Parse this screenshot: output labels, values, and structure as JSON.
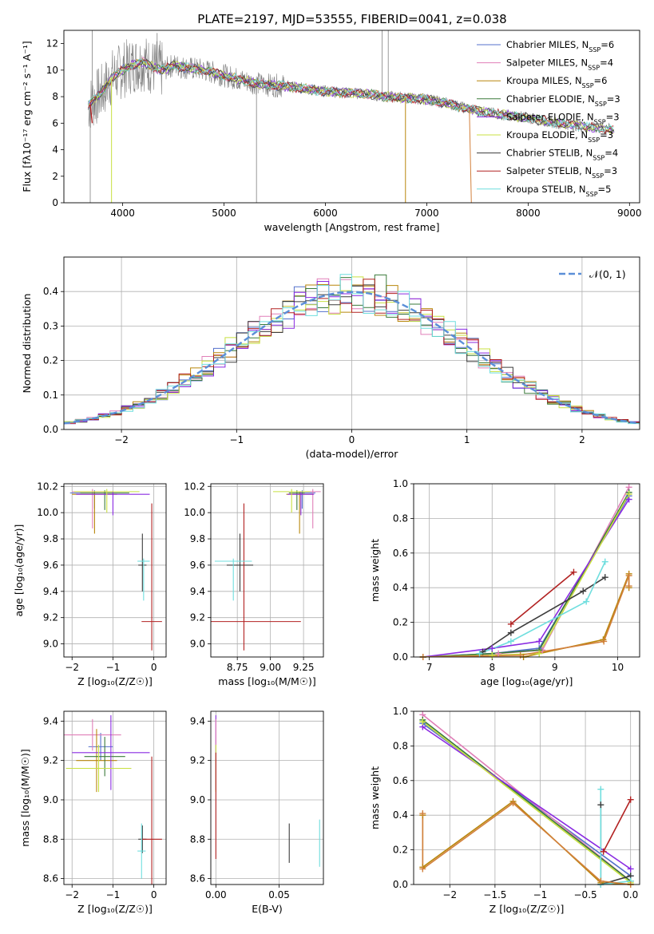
{
  "figure_title": "PLATE=2197, MJD=53555, FIBERID=0041, z=0.038",
  "colors": {
    "Chabrier MILES": "#5470cc",
    "Salpeter MILES": "#e07fb8",
    "Kroupa MILES": "#b8860b",
    "Chabrier ELODIE": "#3a7a3a",
    "Salpeter ELODIE": "#8a2be2",
    "Kroupa ELODIE": "#c8e040",
    "Chabrier STELIB": "#3c3c3c",
    "Salpeter STELIB": "#b22222",
    "Kroupa STELIB": "#6fdede",
    "data": "#808080",
    "normal": "#5b8fd8",
    "orange": "#d2803c",
    "teal": "#2e8b8b"
  },
  "chart_data": [
    {
      "id": "spectrum",
      "type": "line",
      "title": "PLATE=2197, MJD=53555, FIBERID=0041, z=0.038",
      "xlabel": "wavelength [Angstrom, rest frame]",
      "ylabel": "Flux [fλ10⁻¹⁷ erg cm⁻² s⁻¹ A⁻¹]",
      "xlim": [
        3420,
        9100
      ],
      "ylim": [
        0,
        13
      ],
      "xticks": [
        4000,
        5000,
        6000,
        7000,
        8000,
        9000
      ],
      "yticks": [
        0,
        2,
        4,
        6,
        8,
        10,
        12
      ],
      "legend_position": "top-right",
      "legend": [
        {
          "label": "Chabrier MILES, N",
          "sub": "SSP",
          "suffix": "=6",
          "key": "Chabrier MILES"
        },
        {
          "label": "Salpeter MILES, N",
          "sub": "SSP",
          "suffix": "=4",
          "key": "Salpeter MILES"
        },
        {
          "label": "Kroupa MILES, N",
          "sub": "SSP",
          "suffix": "=6",
          "key": "Kroupa MILES"
        },
        {
          "label": "Chabrier ELODIE, N",
          "sub": "SSP",
          "suffix": "=3",
          "key": "Chabrier ELODIE"
        },
        {
          "label": "Salpeter ELODIE, N",
          "sub": "SSP",
          "suffix": "=3",
          "key": "Salpeter ELODIE"
        },
        {
          "label": "Kroupa ELODIE, N",
          "sub": "SSP",
          "suffix": "=3",
          "key": "Kroupa ELODIE"
        },
        {
          "label": "Chabrier STELIB, N",
          "sub": "SSP",
          "suffix": "=4",
          "key": "Chabrier STELIB"
        },
        {
          "label": "Salpeter STELIB, N",
          "sub": "SSP",
          "suffix": "=3",
          "key": "Salpeter STELIB"
        },
        {
          "label": "Kroupa STELIB, N",
          "sub": "SSP",
          "suffix": "=5",
          "key": "Kroupa STELIB"
        }
      ],
      "model_continuum": {
        "x": [
          3660,
          3700,
          3800,
          3900,
          4000,
          4100,
          4200,
          4300,
          4400,
          4500,
          4600,
          4800,
          5000,
          5200,
          5400,
          5600,
          5800,
          6000,
          6200,
          6400,
          6600,
          6800,
          7000,
          7200,
          7400,
          7600,
          7800,
          8000,
          8200,
          8400,
          8600,
          8850
        ],
        "y": [
          7.4,
          7.6,
          8.4,
          9.5,
          10.0,
          10.4,
          10.6,
          10.2,
          10.0,
          10.4,
          10.2,
          10.0,
          9.6,
          9.2,
          8.9,
          8.8,
          8.6,
          8.4,
          8.3,
          8.2,
          8.0,
          7.9,
          7.8,
          7.5,
          7.1,
          6.8,
          6.6,
          6.4,
          6.1,
          5.9,
          5.7,
          5.5
        ]
      }
    },
    {
      "id": "residual_hist",
      "type": "bar",
      "xlabel": "(data-model)/error",
      "ylabel": "Normed distribution",
      "xlim": [
        -2.5,
        2.5
      ],
      "ylim": [
        0,
        0.5
      ],
      "xticks": [
        -2,
        -1,
        0,
        1,
        2
      ],
      "yticks": [
        0.0,
        0.1,
        0.2,
        0.3,
        0.4
      ],
      "bin_width": 0.1,
      "legend": [
        {
          "label": "𝒩(0, 1)",
          "key": "normal"
        }
      ],
      "legend_position": "top-right",
      "curve": "standard normal pdf"
    },
    {
      "id": "age_vs_Z",
      "type": "scatter",
      "xlabel": "Z [log₁₀(Z/Z☉)]",
      "ylabel": "age  [log₁₀(age/yr)]",
      "xlim": [
        -2.2,
        0.3
      ],
      "ylim": [
        8.9,
        10.22
      ],
      "xticks": [
        -2,
        -1,
        0
      ],
      "yticks": [
        9.0,
        9.2,
        9.4,
        9.6,
        9.8,
        10.0,
        10.2
      ],
      "points": [
        {
          "key": "Chabrier MILES",
          "x": -1.45,
          "xerr": 0.6,
          "y": 10.15,
          "yerr_lo": 0.12,
          "yerr_hi": 0.02
        },
        {
          "key": "Salpeter MILES",
          "x": -1.5,
          "xerr": 0.5,
          "y": 10.16,
          "yerr_lo": 0.28,
          "yerr_hi": 0.02
        },
        {
          "key": "Kroupa MILES",
          "x": -1.45,
          "xerr": 0.55,
          "y": 10.14,
          "yerr_lo": 0.3,
          "yerr_hi": 0.02
        },
        {
          "key": "Chabrier ELODIE",
          "x": -1.2,
          "xerr": 0.6,
          "y": 10.15,
          "yerr_lo": 0.13,
          "yerr_hi": 0.02
        },
        {
          "key": "Salpeter ELODIE",
          "x": -1.0,
          "xerr": 0.9,
          "y": 10.14,
          "yerr_lo": 0.16,
          "yerr_hi": 0.02
        },
        {
          "key": "Kroupa ELODIE",
          "x": -1.15,
          "xerr": 0.8,
          "y": 10.16,
          "yerr_lo": 0.16,
          "yerr_hi": 0.02
        },
        {
          "key": "Chabrier STELIB",
          "x": -0.28,
          "xerr": 0.1,
          "y": 9.6,
          "yerr_lo": 0.2,
          "yerr_hi": 0.24
        },
        {
          "key": "Salpeter STELIB",
          "x": -0.05,
          "xerr": 0.25,
          "y": 9.17,
          "yerr_lo": 0.22,
          "yerr_hi": 0.9
        },
        {
          "key": "Kroupa STELIB",
          "x": -0.25,
          "xerr": 0.15,
          "y": 9.63,
          "yerr_lo": 0.3,
          "yerr_hi": 0.02
        }
      ]
    },
    {
      "id": "age_vs_mass",
      "type": "scatter",
      "xlabel": "mass [log₁₀(M/M☉)]",
      "ylabel": "",
      "xlim": [
        8.55,
        9.4
      ],
      "ylim": [
        8.9,
        10.22
      ],
      "xticks": [
        8.75,
        9.0,
        9.25
      ],
      "yticks": [
        9.0,
        9.2,
        9.4,
        9.6,
        9.8,
        10.0,
        10.2
      ],
      "points": [
        {
          "key": "Chabrier MILES",
          "x": 9.24,
          "xerr": 0.1,
          "y": 10.15,
          "yerr_lo": 0.12,
          "yerr_hi": 0.02
        },
        {
          "key": "Salpeter MILES",
          "x": 9.32,
          "xerr": 0.06,
          "y": 10.16,
          "yerr_lo": 0.28,
          "yerr_hi": 0.02
        },
        {
          "key": "Kroupa MILES",
          "x": 9.22,
          "xerr": 0.1,
          "y": 10.14,
          "yerr_lo": 0.3,
          "yerr_hi": 0.02
        },
        {
          "key": "Chabrier ELODIE",
          "x": 9.2,
          "xerr": 0.06,
          "y": 10.15,
          "yerr_lo": 0.13,
          "yerr_hi": 0.02
        },
        {
          "key": "Salpeter ELODIE",
          "x": 9.23,
          "xerr": 0.1,
          "y": 10.14,
          "yerr_lo": 0.16,
          "yerr_hi": 0.02
        },
        {
          "key": "Kroupa ELODIE",
          "x": 9.16,
          "xerr": 0.14,
          "y": 10.16,
          "yerr_lo": 0.16,
          "yerr_hi": 0.02
        },
        {
          "key": "Chabrier STELIB",
          "x": 8.77,
          "xerr": 0.1,
          "y": 9.6,
          "yerr_lo": 0.2,
          "yerr_hi": 0.24
        },
        {
          "key": "Salpeter STELIB",
          "x": 8.8,
          "xerr": 0.43,
          "y": 9.17,
          "yerr_lo": 0.22,
          "yerr_hi": 0.9
        },
        {
          "key": "Kroupa STELIB",
          "x": 8.72,
          "xerr": 0.14,
          "y": 9.63,
          "yerr_lo": 0.3,
          "yerr_hi": 0.02
        }
      ]
    },
    {
      "id": "weight_vs_age",
      "type": "line",
      "xlabel": "age  [log₁₀(age/yr)]",
      "ylabel": "mass weight",
      "xlim": [
        6.75,
        10.35
      ],
      "ylim": [
        0,
        1.0
      ],
      "xticks": [
        7,
        8,
        9,
        10
      ],
      "yticks": [
        0.0,
        0.2,
        0.4,
        0.6,
        0.8,
        1.0
      ],
      "series": [
        {
          "key": "Chabrier MILES",
          "x": [
            6.9,
            8.0,
            8.75,
            10.18
          ],
          "y": [
            0.0,
            0.02,
            0.05,
            0.93
          ]
        },
        {
          "key": "Salpeter MILES",
          "x": [
            6.9,
            8.1,
            8.8,
            10.18
          ],
          "y": [
            0.0,
            0.02,
            0.04,
            0.98
          ]
        },
        {
          "key": "Kroupa MILES",
          "x": [
            6.9,
            8.5,
            9.77,
            10.18,
            10.18
          ],
          "y": [
            0.0,
            0.0,
            0.1,
            0.48,
            0.4
          ]
        },
        {
          "key": "Chabrier ELODIE",
          "x": [
            6.9,
            8.0,
            8.75,
            10.18
          ],
          "y": [
            0.0,
            0.02,
            0.04,
            0.95
          ]
        },
        {
          "key": "Salpeter ELODIE",
          "x": [
            6.9,
            8.0,
            8.75,
            10.18
          ],
          "y": [
            0.0,
            0.05,
            0.09,
            0.91
          ]
        },
        {
          "key": "Kroupa ELODIE",
          "x": [
            6.9,
            8.0,
            8.75,
            10.18
          ],
          "y": [
            0.0,
            0.01,
            0.02,
            0.94
          ]
        },
        {
          "key": "Chabrier STELIB",
          "x": [
            7.85,
            8.3,
            9.45,
            9.8
          ],
          "y": [
            0.03,
            0.14,
            0.38,
            0.46
          ]
        },
        {
          "key": "Salpeter STELIB",
          "x": [
            8.3,
            9.3
          ],
          "y": [
            0.19,
            0.49
          ]
        },
        {
          "key": "Kroupa STELIB",
          "x": [
            7.8,
            8.3,
            9.5,
            9.8
          ],
          "y": [
            0.02,
            0.09,
            0.32,
            0.55
          ]
        },
        {
          "key": "orange",
          "x": [
            6.9,
            8.45,
            9.78,
            10.18,
            10.18
          ],
          "y": [
            0.0,
            0.01,
            0.09,
            0.47,
            0.41
          ]
        }
      ]
    },
    {
      "id": "mass_vs_Z",
      "type": "scatter",
      "xlabel": "Z [log₁₀(Z/Z☉)]",
      "ylabel": "mass [log₁₀(M/M☉)]",
      "xlim": [
        -2.2,
        0.3
      ],
      "ylim": [
        8.57,
        9.45
      ],
      "xticks": [
        -2,
        -1,
        0
      ],
      "yticks": [
        8.6,
        8.8,
        9.0,
        9.2,
        9.4
      ],
      "points": [
        {
          "key": "Chabrier MILES",
          "x": -1.3,
          "xerr": 0.3,
          "y": 9.27,
          "yerr": 0.07
        },
        {
          "key": "Salpeter MILES",
          "x": -1.5,
          "xerr": 0.7,
          "y": 9.33,
          "yerr": 0.08
        },
        {
          "key": "Kroupa MILES",
          "x": -1.4,
          "xerr": 0.5,
          "y": 9.2,
          "yerr": 0.16
        },
        {
          "key": "Chabrier ELODIE",
          "x": -1.2,
          "xerr": 0.5,
          "y": 9.22,
          "yerr": 0.1
        },
        {
          "key": "Salpeter ELODIE",
          "x": -1.05,
          "xerr": 0.95,
          "y": 9.24,
          "yerr": 0.19
        },
        {
          "key": "Kroupa ELODIE",
          "x": -1.35,
          "xerr": 0.8,
          "y": 9.16,
          "yerr": 0.12
        },
        {
          "key": "Chabrier STELIB",
          "x": -0.28,
          "xerr": 0.1,
          "y": 8.8,
          "yerr": 0.07
        },
        {
          "key": "Salpeter STELIB",
          "x": -0.05,
          "xerr": 0.25,
          "y": 8.8,
          "yerr": 0.42
        },
        {
          "key": "Kroupa STELIB",
          "x": -0.3,
          "xerr": 0.1,
          "y": 8.74,
          "yerr": 0.14
        }
      ]
    },
    {
      "id": "mass_vs_ebv",
      "type": "scatter",
      "xlabel": "E(B-V)",
      "ylabel": "",
      "xlim": [
        -0.004,
        0.085
      ],
      "ylim": [
        8.57,
        9.45
      ],
      "xticks": [
        0.0,
        0.05
      ],
      "yticks": [
        8.6,
        8.8,
        9.0,
        9.2,
        9.4
      ],
      "points": [
        {
          "key": "Salpeter ELODIE",
          "x": 0.0,
          "y": 9.24,
          "yerr": 0.19
        },
        {
          "key": "Salpeter MILES",
          "x": 0.0,
          "y": 9.33,
          "yerr": 0.08
        },
        {
          "key": "Kroupa ELODIE",
          "x": 0.0,
          "y": 9.16,
          "yerr": 0.12
        },
        {
          "key": "Salpeter STELIB",
          "x": 0.0,
          "y": 8.97,
          "yerr": 0.27
        },
        {
          "key": "Chabrier STELIB",
          "x": 0.058,
          "y": 8.78,
          "yerr": 0.1
        },
        {
          "key": "Kroupa STELIB",
          "x": 0.082,
          "y": 8.78,
          "yerr": 0.12
        }
      ]
    },
    {
      "id": "weight_vs_Z",
      "type": "line",
      "xlabel": "Z [log₁₀(Z/Z☉)]",
      "ylabel": "mass weight",
      "xlim": [
        -2.4,
        0.1
      ],
      "ylim": [
        0,
        1.0
      ],
      "xticks": [
        -2.0,
        -1.5,
        -1.0,
        -0.5,
        0.0
      ],
      "yticks": [
        0.0,
        0.2,
        0.4,
        0.6,
        0.8,
        1.0
      ],
      "series": [
        {
          "key": "Chabrier MILES",
          "x": [
            -2.3,
            0.0
          ],
          "y": [
            0.93,
            0.05
          ]
        },
        {
          "key": "Salpeter MILES",
          "x": [
            -2.3,
            0.0
          ],
          "y": [
            0.98,
            0.02
          ]
        },
        {
          "key": "Kroupa MILES",
          "x": [
            -2.3,
            -2.3,
            -1.3,
            -0.33,
            0.0
          ],
          "y": [
            0.4,
            0.1,
            0.48,
            0.01,
            0.0
          ]
        },
        {
          "key": "Chabrier ELODIE",
          "x": [
            -2.3,
            0.0
          ],
          "y": [
            0.95,
            0.02
          ]
        },
        {
          "key": "Salpeter ELODIE",
          "x": [
            -2.3,
            0.0
          ],
          "y": [
            0.91,
            0.09
          ]
        },
        {
          "key": "Kroupa ELODIE",
          "x": [
            -2.3,
            0.0
          ],
          "y": [
            0.94,
            0.01
          ]
        },
        {
          "key": "Chabrier STELIB",
          "x": [
            -0.33,
            -0.33,
            0.0
          ],
          "y": [
            0.46,
            0.0,
            0.05
          ]
        },
        {
          "key": "Salpeter STELIB",
          "x": [
            -0.3,
            0.0
          ],
          "y": [
            0.19,
            0.49
          ]
        },
        {
          "key": "Kroupa STELIB",
          "x": [
            -0.33,
            -0.33,
            0.0
          ],
          "y": [
            0.55,
            0.0,
            0.02
          ]
        },
        {
          "key": "orange",
          "x": [
            -2.3,
            -2.3,
            -1.3,
            -0.33,
            0.0
          ],
          "y": [
            0.41,
            0.09,
            0.47,
            0.02,
            0.0
          ]
        }
      ]
    }
  ]
}
